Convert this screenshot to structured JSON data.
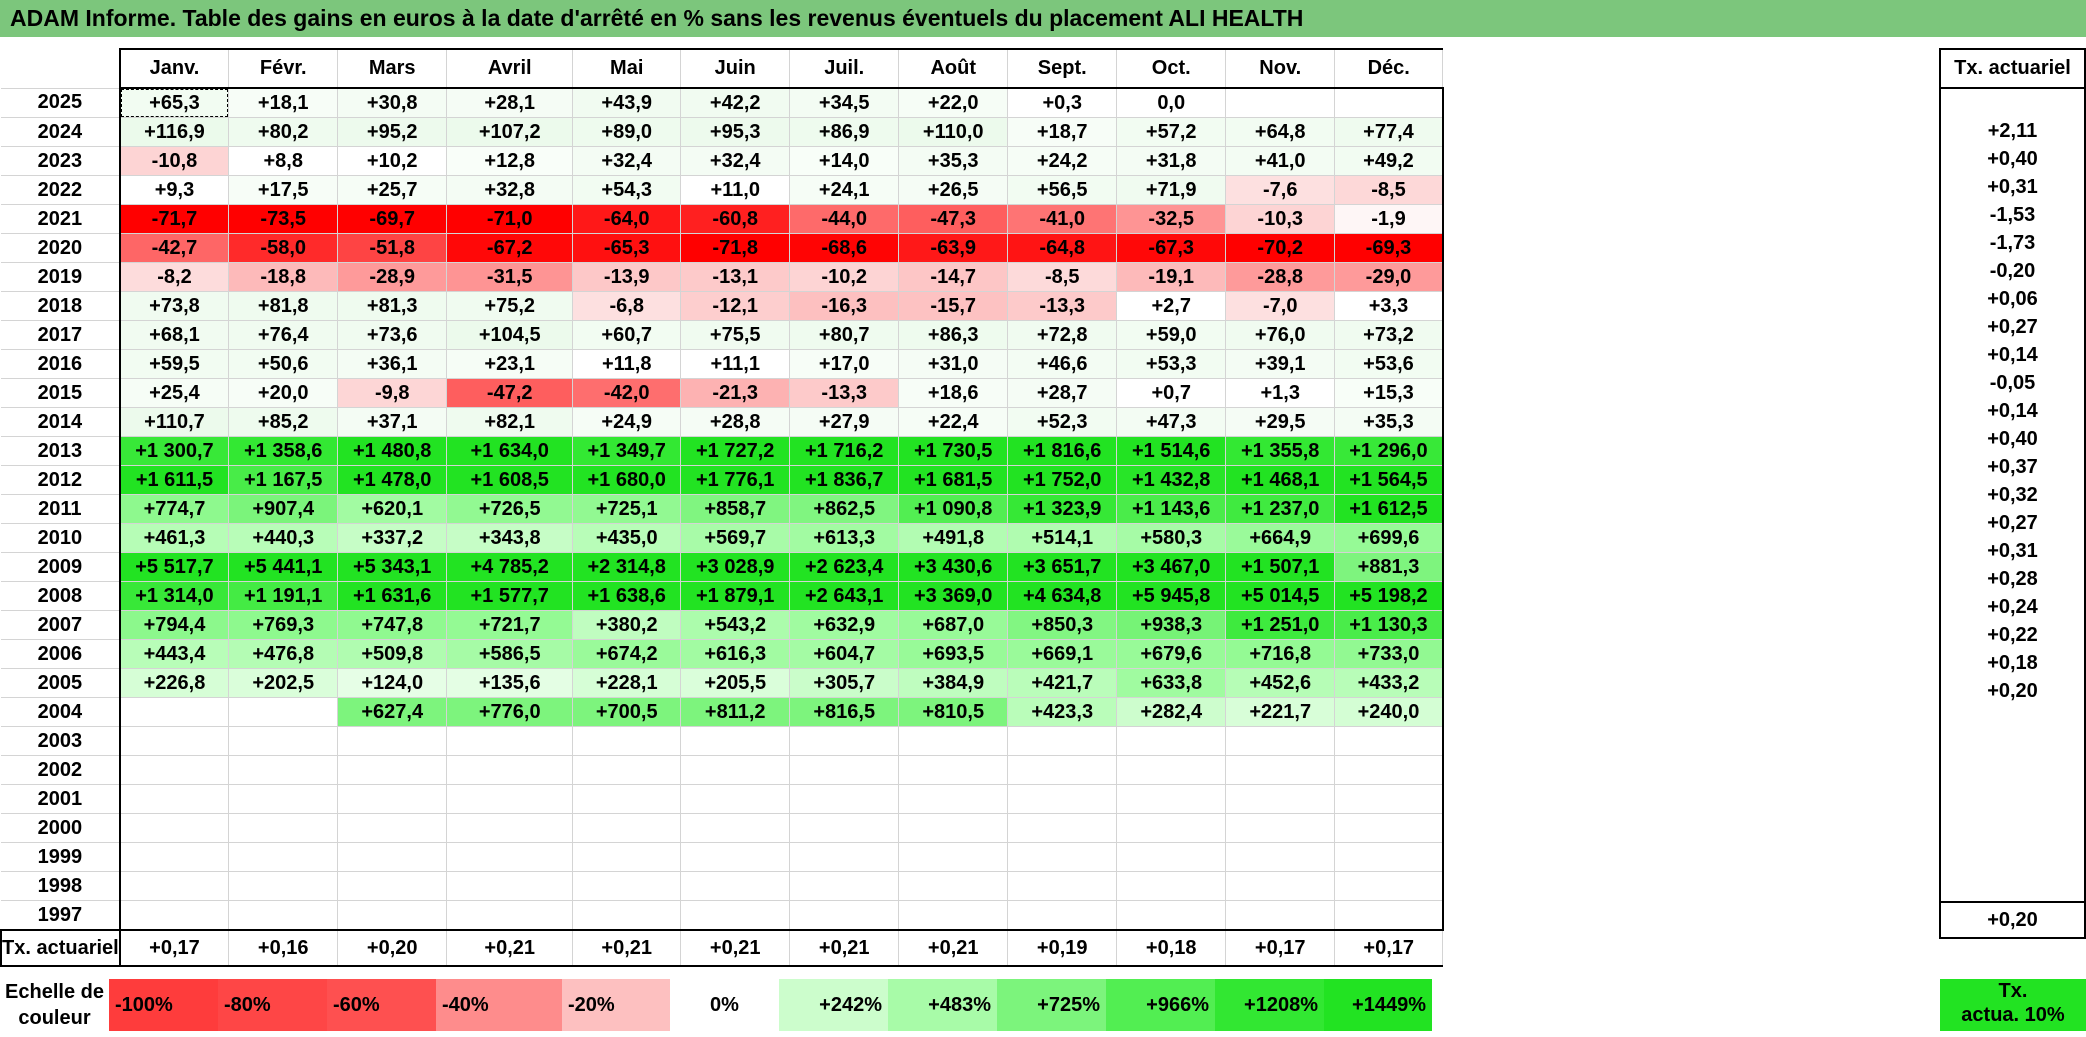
{
  "title": "ADAM Informe. Table des gains en euros à la date d'arrêté en % sans les revenus éventuels du placement ALI HEALTH",
  "months": [
    "Janv.",
    "Févr.",
    "Mars",
    "Avril",
    "Mai",
    "Juin",
    "Juil.",
    "Août",
    "Sept.",
    "Oct.",
    "Nov.",
    "Déc."
  ],
  "tx_header": "Tx. actuariel",
  "rows": [
    {
      "year": "2025",
      "vals": [
        "+65,3",
        "+18,1",
        "+30,8",
        "+28,1",
        "+43,9",
        "+42,2",
        "+34,5",
        "+22,0",
        "+0,3",
        "0,0",
        "",
        ""
      ],
      "bg": [
        "#f2fcf2",
        "#f7fdf7",
        "#f4fcf4",
        "#f5fcf5",
        "#f1fbf1",
        "#f1fbf1",
        "#f3fcf3",
        "#f6fdf6",
        "#fff",
        "#fff",
        "#fff",
        "#fff"
      ],
      "tx": ""
    },
    {
      "year": "2024",
      "vals": [
        "+116,9",
        "+80,2",
        "+95,2",
        "+107,2",
        "+89,0",
        "+95,3",
        "+86,9",
        "+110,0",
        "+18,7",
        "+57,2",
        "+64,8",
        "+77,4"
      ],
      "bg": [
        "#ebfaeb",
        "#effbef",
        "#edfaed",
        "#ecfaec",
        "#eefbee",
        "#edfaed",
        "#eefbee",
        "#ecfaec",
        "#f7fdf7",
        "#f2fcf2",
        "#f2fcf2",
        "#effbef"
      ],
      "tx": "+2,11"
    },
    {
      "year": "2023",
      "vals": [
        "-10,8",
        "+8,8",
        "+10,2",
        "+12,8",
        "+32,4",
        "+32,4",
        "+14,0",
        "+35,3",
        "+24,2",
        "+31,8",
        "+41,0",
        "+49,2"
      ],
      "bg": [
        "#fdd4d4",
        "#fff",
        "#fff",
        "#f9fef9",
        "#f4fcf4",
        "#f4fcf4",
        "#f8fef8",
        "#f4fcf4",
        "#f6fdf6",
        "#f4fcf4",
        "#f3fcf3",
        "#f2fcf2"
      ],
      "tx": "+0,40"
    },
    {
      "year": "2022",
      "vals": [
        "+9,3",
        "+17,5",
        "+25,7",
        "+32,8",
        "+54,3",
        "+11,0",
        "+24,1",
        "+26,5",
        "+56,5",
        "+71,9",
        "-7,6",
        "-8,5"
      ],
      "bg": [
        "#fff",
        "#f7fdf7",
        "#f6fdf6",
        "#f4fcf4",
        "#f2fcf2",
        "#fff",
        "#f6fdf6",
        "#f5fcf5",
        "#f2fcf2",
        "#f0fbf0",
        "#fde0e0",
        "#fdd8d8"
      ],
      "tx": "+0,31"
    },
    {
      "year": "2021",
      "vals": [
        "-71,7",
        "-73,5",
        "-69,7",
        "-71,0",
        "-64,0",
        "-60,8",
        "-44,0",
        "-47,3",
        "-41,0",
        "-32,5",
        "-10,3",
        "-1,9"
      ],
      "bg": [
        "#ff0000",
        "#ff0000",
        "#ff0000",
        "#ff0000",
        "#ff1818",
        "#ff2020",
        "#fe6a6a",
        "#fe5e5e",
        "#fe7474",
        "#fe9494",
        "#fdd4d4",
        "#fef6f6"
      ],
      "tx": "-1,53"
    },
    {
      "year": "2020",
      "vals": [
        "-42,7",
        "-58,0",
        "-51,8",
        "-67,2",
        "-65,3",
        "-71,8",
        "-68,6",
        "-63,9",
        "-64,8",
        "-67,3",
        "-70,2",
        "-69,3"
      ],
      "bg": [
        "#fe6666",
        "#ff2a2a",
        "#fe4444",
        "#ff0808",
        "#ff1010",
        "#ff0000",
        "#ff0404",
        "#ff1818",
        "#ff1414",
        "#ff0808",
        "#ff0000",
        "#ff0000"
      ],
      "tx": "-1,73"
    },
    {
      "year": "2019",
      "vals": [
        "-8,2",
        "-18,8",
        "-28,9",
        "-31,5",
        "-13,9",
        "-13,1",
        "-10,2",
        "-14,7",
        "-8,5",
        "-19,1",
        "-28,8",
        "-29,0"
      ],
      "bg": [
        "#fddcdc",
        "#fdbaba",
        "#fe9a9a",
        "#fe9494",
        "#fdc8c8",
        "#fdcaca",
        "#fdd4d4",
        "#fdc6c6",
        "#fddada",
        "#fdbaba",
        "#fe9a9a",
        "#fe9a9a"
      ],
      "tx": "-0,20"
    },
    {
      "year": "2018",
      "vals": [
        "+73,8",
        "+81,8",
        "+81,3",
        "+75,2",
        "-6,8",
        "-12,1",
        "-16,3",
        "-15,7",
        "-13,3",
        "+2,7",
        "-7,0",
        "+3,3"
      ],
      "bg": [
        "#f0fbf0",
        "#effbef",
        "#effbef",
        "#f0fbf0",
        "#fde0e0",
        "#fdcece",
        "#fdc0c0",
        "#fdc2c2",
        "#fdcaca",
        "#fff",
        "#fde0e0",
        "#fff"
      ],
      "tx": "+0,06"
    },
    {
      "year": "2017",
      "vals": [
        "+68,1",
        "+76,4",
        "+73,6",
        "+104,5",
        "+60,7",
        "+75,5",
        "+80,7",
        "+86,3",
        "+72,8",
        "+59,0",
        "+76,0",
        "+73,2"
      ],
      "bg": [
        "#f1fbf1",
        "#f0fbf0",
        "#f0fbf0",
        "#ecfaec",
        "#f2fcf2",
        "#f0fbf0",
        "#effbef",
        "#eefbee",
        "#f0fbf0",
        "#f2fcf2",
        "#f0fbf0",
        "#f0fbf0"
      ],
      "tx": "+0,27"
    },
    {
      "year": "2016",
      "vals": [
        "+59,5",
        "+50,6",
        "+36,1",
        "+23,1",
        "+11,8",
        "+11,1",
        "+17,0",
        "+31,0",
        "+46,6",
        "+53,3",
        "+39,1",
        "+53,6"
      ],
      "bg": [
        "#f2fcf2",
        "#f2fcf2",
        "#f4fcf4",
        "#f6fdf6",
        "#fff",
        "#fff",
        "#f7fdf7",
        "#f5fcf5",
        "#f3fcf3",
        "#f2fcf2",
        "#f4fcf4",
        "#f2fcf2"
      ],
      "tx": "+0,14"
    },
    {
      "year": "2015",
      "vals": [
        "+25,4",
        "+20,0",
        "-9,8",
        "-47,2",
        "-42,0",
        "-21,3",
        "-13,3",
        "+18,6",
        "+28,7",
        "+0,7",
        "+1,3",
        "+15,3"
      ],
      "bg": [
        "#f6fdf6",
        "#f7fdf7",
        "#fdd6d6",
        "#fe5e5e",
        "#fe6e6e",
        "#fdb2b2",
        "#fdcaca",
        "#f7fdf7",
        "#f5fcf5",
        "#fff",
        "#fff",
        "#f8fef8"
      ],
      "tx": "-0,05"
    },
    {
      "year": "2014",
      "vals": [
        "+110,7",
        "+85,2",
        "+37,1",
        "+82,1",
        "+24,9",
        "+28,8",
        "+27,9",
        "+22,4",
        "+52,3",
        "+47,3",
        "+29,5",
        "+35,3"
      ],
      "bg": [
        "#ecfaec",
        "#eefbee",
        "#f4fcf4",
        "#effbef",
        "#f6fdf6",
        "#f5fcf5",
        "#f5fcf5",
        "#f6fdf6",
        "#f2fcf2",
        "#f3fcf3",
        "#f5fcf5",
        "#f4fcf4"
      ],
      "tx": "+0,14"
    },
    {
      "year": "2013",
      "vals": [
        "+1 300,7",
        "+1 358,6",
        "+1 480,8",
        "+1 634,0",
        "+1 349,7",
        "+1 727,2",
        "+1 716,2",
        "+1 730,5",
        "+1 816,6",
        "+1 514,6",
        "+1 355,8",
        "+1 296,0"
      ],
      "bg": [
        "#38e838",
        "#33e833",
        "#22e322",
        "#22e322",
        "#33e833",
        "#22e322",
        "#22e322",
        "#22e322",
        "#22e322",
        "#22e322",
        "#33e833",
        "#38e838"
      ],
      "tx": "+0,40"
    },
    {
      "year": "2012",
      "vals": [
        "+1 611,5",
        "+1 167,5",
        "+1 478,0",
        "+1 608,5",
        "+1 680,0",
        "+1 776,1",
        "+1 836,7",
        "+1 681,5",
        "+1 752,0",
        "+1 432,8",
        "+1 468,1",
        "+1 564,5"
      ],
      "bg": [
        "#22e322",
        "#48ec48",
        "#22e322",
        "#22e322",
        "#22e322",
        "#22e322",
        "#22e322",
        "#22e322",
        "#22e322",
        "#28e528",
        "#22e322",
        "#22e322"
      ],
      "tx": "+0,37"
    },
    {
      "year": "2011",
      "vals": [
        "+774,7",
        "+907,4",
        "+620,1",
        "+726,5",
        "+725,1",
        "+858,7",
        "+862,5",
        "+1 090,8",
        "+1 323,9",
        "+1 143,6",
        "+1 237,0",
        "+1 612,5"
      ],
      "bg": [
        "#8ef98e",
        "#7bf47b",
        "#a2fba2",
        "#92f992",
        "#92f992",
        "#80f580",
        "#80f580",
        "#52ee52",
        "#36e836",
        "#4aec4a",
        "#40ea40",
        "#22e322"
      ],
      "tx": "+0,32"
    },
    {
      "year": "2010",
      "vals": [
        "+461,3",
        "+440,3",
        "+337,2",
        "+343,8",
        "+435,0",
        "+569,7",
        "+613,3",
        "+491,8",
        "+514,1",
        "+580,3",
        "+664,9",
        "+699,6"
      ],
      "bg": [
        "#b6fdb6",
        "#b8fdb8",
        "#c6fdc6",
        "#c6fdc6",
        "#b8fdb8",
        "#a8fba8",
        "#a2fba2",
        "#b2fcb2",
        "#b0fcb0",
        "#a6fba6",
        "#9afa9a",
        "#96fa96"
      ],
      "tx": "+0,27"
    },
    {
      "year": "2009",
      "vals": [
        "+5 517,7",
        "+5 441,1",
        "+5 343,1",
        "+4 785,2",
        "+2 314,8",
        "+3 028,9",
        "+2 623,4",
        "+3 430,6",
        "+3 651,7",
        "+3 467,0",
        "+1 507,1",
        "+881,3"
      ],
      "bg": [
        "#22e322",
        "#22e322",
        "#22e322",
        "#22e322",
        "#22e322",
        "#22e322",
        "#22e322",
        "#22e322",
        "#22e322",
        "#22e322",
        "#22e322",
        "#7ef47e"
      ],
      "tx": "+0,31"
    },
    {
      "year": "2008",
      "vals": [
        "+1 314,0",
        "+1 191,1",
        "+1 631,6",
        "+1 577,7",
        "+1 638,6",
        "+1 879,1",
        "+2 643,1",
        "+3 369,0",
        "+4 634,8",
        "+5 945,8",
        "+5 014,5",
        "+5 198,2"
      ],
      "bg": [
        "#38e838",
        "#44eb44",
        "#22e322",
        "#22e322",
        "#22e322",
        "#22e322",
        "#22e322",
        "#22e322",
        "#22e322",
        "#22e322",
        "#22e322",
        "#22e322"
      ],
      "tx": "+0,28"
    },
    {
      "year": "2007",
      "vals": [
        "+794,4",
        "+769,3",
        "+747,8",
        "+721,7",
        "+380,2",
        "+543,2",
        "+632,9",
        "+687,0",
        "+850,3",
        "+938,3",
        "+1 251,0",
        "+1 130,3"
      ],
      "bg": [
        "#8cf88c",
        "#8ef98e",
        "#90f990",
        "#94fa94",
        "#c0fdc0",
        "#acfcac",
        "#a0fba0",
        "#98fa98",
        "#82f682",
        "#76f376",
        "#3eea3e",
        "#4aec4a"
      ],
      "tx": "+0,24"
    },
    {
      "year": "2006",
      "vals": [
        "+443,4",
        "+476,8",
        "+509,8",
        "+586,5",
        "+674,2",
        "+616,3",
        "+604,7",
        "+693,5",
        "+669,1",
        "+679,6",
        "+716,8",
        "+733,0"
      ],
      "bg": [
        "#b8fdb8",
        "#b4fcb4",
        "#b0fcb0",
        "#a6fba6",
        "#9afa9a",
        "#a2fba2",
        "#a4fba4",
        "#98fa98",
        "#9afa9a",
        "#98fa98",
        "#94fa94",
        "#92f992"
      ],
      "tx": "+0,22"
    },
    {
      "year": "2005",
      "vals": [
        "+226,8",
        "+202,5",
        "+124,0",
        "+135,6",
        "+228,1",
        "+205,5",
        "+305,7",
        "+384,9",
        "+421,7",
        "+633,8",
        "+452,6",
        "+433,2"
      ],
      "bg": [
        "#d6fed6",
        "#dafeda",
        "#e6fee6",
        "#e4fee4",
        "#d6fed6",
        "#dafeda",
        "#cafdca",
        "#bffdbf",
        "#bafdba",
        "#a0fba0",
        "#b6fdb6",
        "#b8fdb8"
      ],
      "tx": "+0,18"
    },
    {
      "year": "2004",
      "vals": [
        "",
        "",
        "+627,4",
        "+776,0",
        "+700,5",
        "+811,2",
        "+816,5",
        "+810,5",
        "+423,3",
        "+282,4",
        "+221,7",
        "+240,0"
      ],
      "bg": [
        "#fff",
        "#fff",
        "#7df47d",
        "#7df47d",
        "#7df47d",
        "#7df47d",
        "#7df47d",
        "#7df47d",
        "#bafdba",
        "#cdfdcd",
        "#d8fed8",
        "#d4fed4"
      ],
      "tx": "+0,20"
    },
    {
      "year": "2003",
      "vals": [
        "",
        "",
        "",
        "",
        "",
        "",
        "",
        "",
        "",
        "",
        "",
        ""
      ],
      "bg": [],
      "tx": ""
    },
    {
      "year": "2002",
      "vals": [
        "",
        "",
        "",
        "",
        "",
        "",
        "",
        "",
        "",
        "",
        "",
        ""
      ],
      "bg": [],
      "tx": ""
    },
    {
      "year": "2001",
      "vals": [
        "",
        "",
        "",
        "",
        "",
        "",
        "",
        "",
        "",
        "",
        "",
        ""
      ],
      "bg": [],
      "tx": ""
    },
    {
      "year": "2000",
      "vals": [
        "",
        "",
        "",
        "",
        "",
        "",
        "",
        "",
        "",
        "",
        "",
        ""
      ],
      "bg": [],
      "tx": ""
    },
    {
      "year": "1999",
      "vals": [
        "",
        "",
        "",
        "",
        "",
        "",
        "",
        "",
        "",
        "",
        "",
        ""
      ],
      "bg": [],
      "tx": ""
    },
    {
      "year": "1998",
      "vals": [
        "",
        "",
        "",
        "",
        "",
        "",
        "",
        "",
        "",
        "",
        "",
        ""
      ],
      "bg": [],
      "tx": ""
    },
    {
      "year": "1997",
      "vals": [
        "",
        "",
        "",
        "",
        "",
        "",
        "",
        "",
        "",
        "",
        "",
        ""
      ],
      "bg": [],
      "tx": ""
    }
  ],
  "footer": {
    "label": "Tx. actuariel",
    "vals": [
      "+0,17",
      "+0,16",
      "+0,20",
      "+0,21",
      "+0,21",
      "+0,21",
      "+0,21",
      "+0,21",
      "+0,19",
      "+0,18",
      "+0,17",
      "+0,17"
    ],
    "tx": "+0,20"
  },
  "scale": {
    "label_line1": "Echelle de",
    "label_line2": "couleur",
    "items": [
      {
        "text": "-100%",
        "color": "#fe3c3c",
        "kind": "neg"
      },
      {
        "text": "-80%",
        "color": "#fe4646",
        "kind": "neg"
      },
      {
        "text": "-60%",
        "color": "#fe5050",
        "kind": "neg"
      },
      {
        "text": "-40%",
        "color": "#fe8c8c",
        "kind": "neg"
      },
      {
        "text": "-20%",
        "color": "#fdc0c0",
        "kind": "neg"
      },
      {
        "text": "0%",
        "color": "#ffffff",
        "kind": "zero"
      },
      {
        "text": "+242%",
        "color": "#ccfdcc",
        "kind": "pos"
      },
      {
        "text": "+483%",
        "color": "#a8fba8",
        "kind": "pos"
      },
      {
        "text": "+725%",
        "color": "#7cf47c",
        "kind": "pos"
      },
      {
        "text": "+966%",
        "color": "#52ee52",
        "kind": "pos"
      },
      {
        "text": "+1208%",
        "color": "#32e732",
        "kind": "pos"
      },
      {
        "text": "+1449%",
        "color": "#22e322",
        "kind": "pos"
      }
    ],
    "last_line1": "Tx.",
    "last_line2": "actua. 10%"
  }
}
